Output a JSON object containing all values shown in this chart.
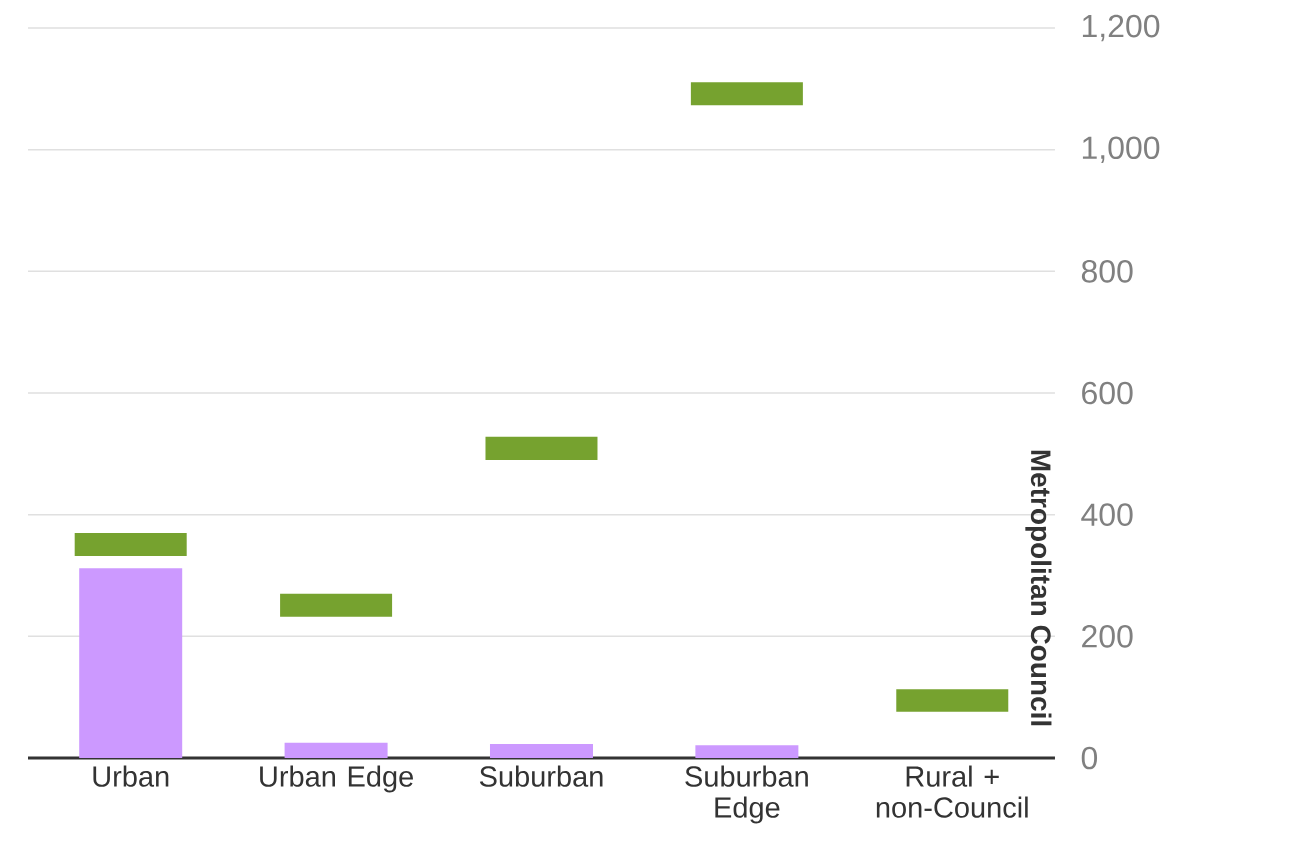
{
  "chart_data": {
    "type": "bar",
    "categories": [
      "Urban",
      "Urban Edge",
      "Suburban",
      "Suburban Edge",
      "Rural + non-Council"
    ],
    "series": [
      {
        "color": "#cc99ff",
        "values": [
          312,
          25,
          23,
          21,
          null
        ]
      },
      {
        "type": "bar",
        "color": "#76a22f",
        "base": [
          332,
          232,
          490,
          1073,
          76
        ],
        "values": [
          38,
          38,
          38,
          38,
          37
        ]
      }
    ],
    "ylabel": "Metropolitan Council",
    "ylim": [
      0,
      1200
    ],
    "yticks": [
      0,
      200,
      400,
      600,
      800,
      {
        "value": 1000,
        "label": "1,000"
      },
      {
        "value": 1200,
        "label": "1,200"
      }
    ],
    "grid": "y",
    "legend": false
  }
}
